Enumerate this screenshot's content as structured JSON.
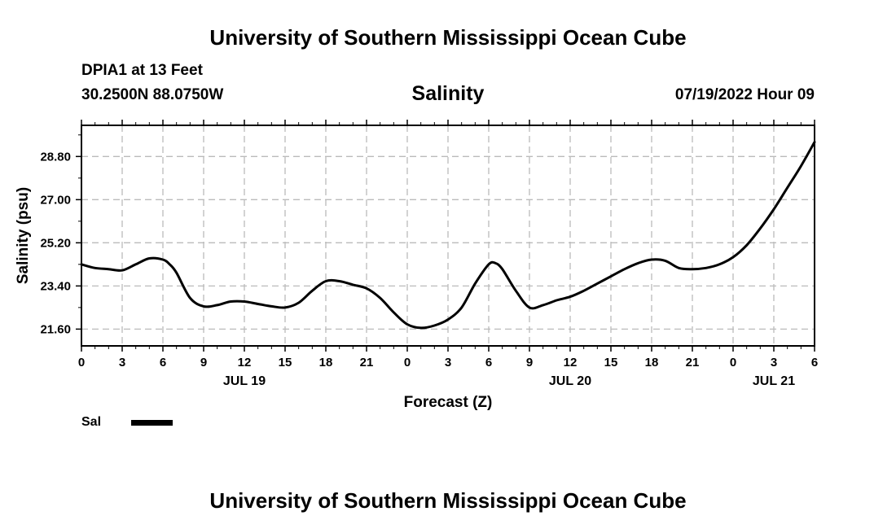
{
  "header": {
    "title": "University of Southern Mississippi Ocean Cube",
    "station": "DPIA1 at 13 Feet",
    "coords": "30.2500N  88.0750W",
    "variable": "Salinity",
    "timestamp": "07/19/2022 Hour 09"
  },
  "footer": {
    "title": "University of Southern Mississippi Ocean Cube"
  },
  "legend": {
    "label": "Sal",
    "color": "#000000"
  },
  "chart_data": {
    "type": "line",
    "xlabel": "Forecast (Z)",
    "ylabel": "Salinity (psu)",
    "x_unit": "hours since 07/19/2022 00Z",
    "xlim": [
      0,
      54
    ],
    "ylim": [
      20.9,
      30.1
    ],
    "x_ticks": [
      0,
      3,
      6,
      9,
      12,
      15,
      18,
      21,
      24,
      27,
      30,
      33,
      36,
      39,
      42,
      45,
      48,
      51,
      54
    ],
    "x_tick_labels": [
      "0",
      "3",
      "6",
      "9",
      "12",
      "15",
      "18",
      "21",
      "0",
      "3",
      "6",
      "9",
      "12",
      "15",
      "18",
      "21",
      "0",
      "3",
      "6"
    ],
    "date_labels": [
      {
        "x": 12,
        "text": "JUL 19"
      },
      {
        "x": 36,
        "text": "JUL 20"
      },
      {
        "x": 51,
        "text": "JUL 21"
      }
    ],
    "y_ticks": [
      21.6,
      23.4,
      25.2,
      27.0,
      28.8
    ],
    "y_tick_labels": [
      "21.60",
      "23.40",
      "25.20",
      "27.00",
      "28.80"
    ],
    "grid": true,
    "series": [
      {
        "name": "Sal",
        "color": "#000000",
        "x": [
          0,
          1,
          2,
          3,
          4,
          5,
          6,
          6.5,
          7,
          8,
          9,
          10,
          11,
          12,
          13,
          14,
          15,
          16,
          17,
          18,
          19,
          20,
          21,
          22,
          23,
          24,
          25,
          26,
          27,
          28,
          29,
          30,
          30.5,
          31,
          32,
          33,
          34,
          35,
          36,
          37,
          38,
          39,
          40,
          41,
          42,
          43,
          44,
          45,
          46,
          47,
          48,
          49,
          50,
          51,
          52,
          53,
          54
        ],
        "y": [
          24.3,
          24.15,
          24.1,
          24.05,
          24.3,
          24.55,
          24.5,
          24.3,
          23.95,
          22.9,
          22.55,
          22.6,
          22.75,
          22.75,
          22.65,
          22.55,
          22.5,
          22.7,
          23.2,
          23.6,
          23.6,
          23.45,
          23.3,
          22.9,
          22.3,
          21.8,
          21.65,
          21.75,
          22.0,
          22.5,
          23.5,
          24.3,
          24.35,
          24.1,
          23.2,
          22.5,
          22.6,
          22.8,
          22.95,
          23.2,
          23.5,
          23.8,
          24.1,
          24.35,
          24.5,
          24.45,
          24.15,
          24.1,
          24.15,
          24.3,
          24.6,
          25.1,
          25.8,
          26.6,
          27.5,
          28.4,
          29.4
        ]
      }
    ]
  }
}
